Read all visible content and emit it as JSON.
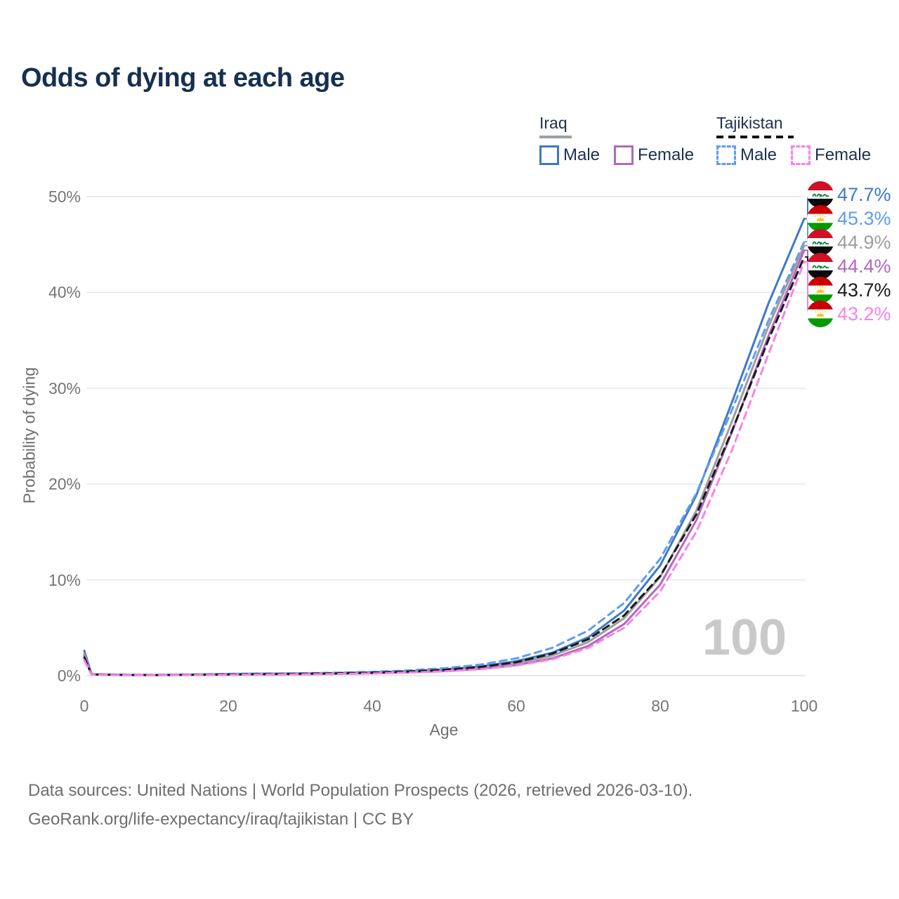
{
  "title": "Odds of dying at each age",
  "legend": {
    "groups": [
      {
        "label": "Iraq",
        "line_style": "solid",
        "underline_color": "#9aa0a6",
        "items": [
          {
            "label": "Male",
            "color": "#3f78c9"
          },
          {
            "label": "Female",
            "color": "#b168c2"
          }
        ]
      },
      {
        "label": "Tajikistan",
        "line_style": "dashed",
        "underline_color": "#111111",
        "items": [
          {
            "label": "Male",
            "color": "#5f9cf2"
          },
          {
            "label": "Female",
            "color": "#f783e8"
          }
        ]
      }
    ]
  },
  "axis": {
    "y_title": "Probability of dying",
    "x_title": "Age",
    "y_ticks": [
      "50%",
      "40%",
      "30%",
      "20%",
      "10%",
      "0%"
    ],
    "x_ticks": [
      "0",
      "20",
      "40",
      "60",
      "80",
      "100"
    ]
  },
  "watermark": "100",
  "footer": {
    "line1": "Data sources: United Nations | World Population Prospects (2026, retrieved 2026-03-10).",
    "line2": "GeoRank.org/life-expectancy/iraq/tajikistan | CC BY"
  },
  "chart_data": {
    "type": "line",
    "title": "Odds of dying at each age",
    "xlabel": "Age",
    "ylabel": "Probability of dying",
    "xlim": [
      0,
      100
    ],
    "ylim": [
      0,
      50
    ],
    "grid": true,
    "legend_position": "top-right",
    "x": [
      0,
      1,
      5,
      10,
      15,
      20,
      25,
      30,
      35,
      40,
      45,
      50,
      55,
      60,
      65,
      70,
      75,
      80,
      85,
      90,
      95,
      100
    ],
    "series": [
      {
        "name": "Iraq Male",
        "country": "iraq",
        "sex": "male",
        "style": "solid",
        "color": "#3f78c9",
        "end_label": "47.7%",
        "end_value": 47.7,
        "values": [
          2.6,
          0.16,
          0.09,
          0.08,
          0.12,
          0.18,
          0.21,
          0.24,
          0.28,
          0.35,
          0.47,
          0.65,
          0.95,
          1.5,
          2.4,
          4.0,
          6.8,
          11.5,
          18.8,
          28.6,
          38.8,
          47.7
        ]
      },
      {
        "name": "Tajikistan Male",
        "country": "tajikistan",
        "sex": "male",
        "style": "dashed",
        "color": "#5f9cf2",
        "end_label": "45.3%",
        "end_value": 45.3,
        "values": [
          2.2,
          0.14,
          0.08,
          0.07,
          0.11,
          0.17,
          0.21,
          0.25,
          0.31,
          0.4,
          0.55,
          0.78,
          1.15,
          1.8,
          2.9,
          4.7,
          7.6,
          12.2,
          19.0,
          27.8,
          37.0,
          45.3
        ]
      },
      {
        "name": "Iraq Both sexes",
        "country": "iraq",
        "sex": "both",
        "style": "solid",
        "color": "#9e9e9e",
        "end_label": "44.9%",
        "end_value": 44.9,
        "values": [
          2.3,
          0.14,
          0.08,
          0.07,
          0.1,
          0.14,
          0.17,
          0.19,
          0.23,
          0.3,
          0.41,
          0.57,
          0.83,
          1.3,
          2.1,
          3.5,
          6.0,
          10.3,
          17.2,
          26.6,
          36.4,
          44.9
        ]
      },
      {
        "name": "Iraq Female",
        "country": "iraq",
        "sex": "female",
        "style": "solid",
        "color": "#b168c2",
        "end_label": "44.4%",
        "end_value": 44.4,
        "values": [
          2.1,
          0.12,
          0.07,
          0.06,
          0.08,
          0.1,
          0.12,
          0.15,
          0.19,
          0.25,
          0.34,
          0.48,
          0.7,
          1.1,
          1.8,
          3.1,
          5.4,
          9.5,
          16.2,
          25.5,
          35.4,
          44.4
        ]
      },
      {
        "name": "Tajikistan Both sexes",
        "country": "tajikistan",
        "sex": "both",
        "style": "dashed",
        "color": "#1a1a1a",
        "end_label": "43.7%",
        "end_value": 43.7,
        "values": [
          1.9,
          0.12,
          0.07,
          0.06,
          0.09,
          0.13,
          0.16,
          0.19,
          0.24,
          0.31,
          0.43,
          0.61,
          0.9,
          1.4,
          2.3,
          3.8,
          6.3,
          10.4,
          16.8,
          25.6,
          35.0,
          43.7
        ]
      },
      {
        "name": "Tajikistan Female",
        "country": "tajikistan",
        "sex": "female",
        "style": "dashed",
        "color": "#f783e8",
        "end_label": "43.2%",
        "end_value": 43.2,
        "values": [
          1.6,
          0.1,
          0.06,
          0.05,
          0.07,
          0.09,
          0.11,
          0.14,
          0.17,
          0.23,
          0.32,
          0.45,
          0.67,
          1.05,
          1.7,
          2.9,
          5.0,
          8.8,
          15.0,
          23.6,
          33.5,
          43.2
        ]
      }
    ]
  },
  "colors": {
    "title": "#17304f",
    "axis_text": "#757575",
    "gridline": "#e7e7e7",
    "watermark": "#c9c9c9",
    "footer_text": "#6e6e6e"
  }
}
